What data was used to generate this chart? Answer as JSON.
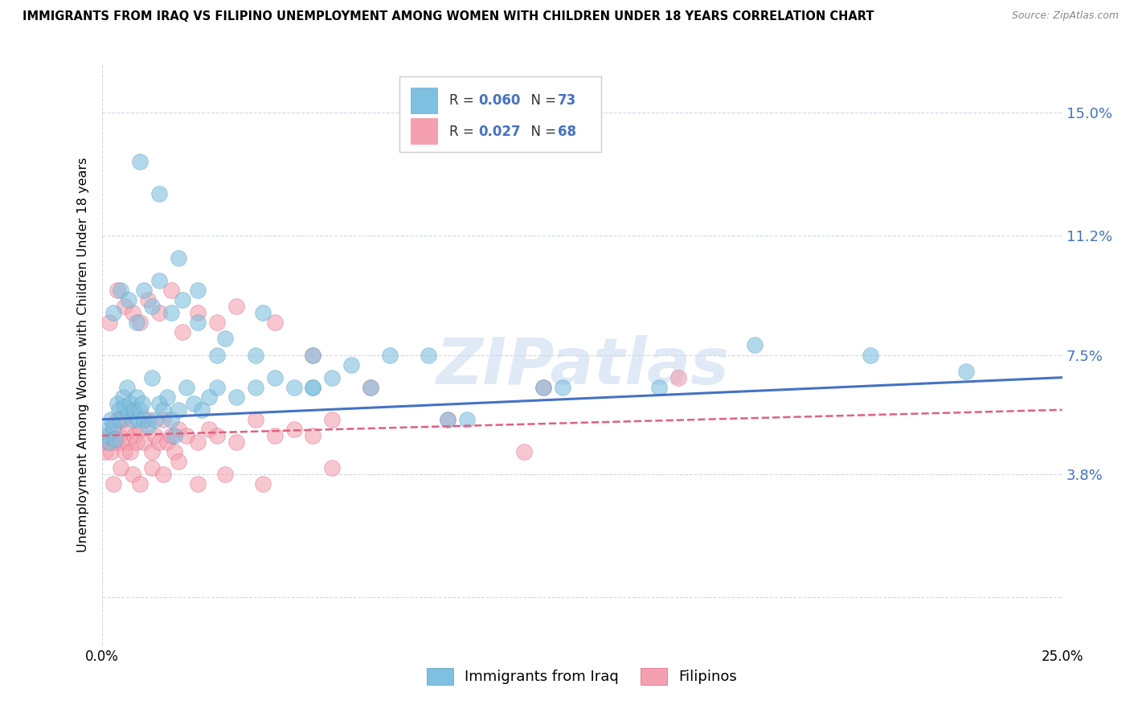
{
  "title": "IMMIGRANTS FROM IRAQ VS FILIPINO UNEMPLOYMENT AMONG WOMEN WITH CHILDREN UNDER 18 YEARS CORRELATION CHART",
  "source": "Source: ZipAtlas.com",
  "ylabel": "Unemployment Among Women with Children Under 18 years",
  "xlim": [
    0.0,
    25.0
  ],
  "ylim": [
    -1.5,
    16.5
  ],
  "yticks": [
    0,
    3.8,
    7.5,
    11.2,
    15.0
  ],
  "ytick_labels": [
    "",
    "3.8%",
    "7.5%",
    "11.2%",
    "15.0%"
  ],
  "watermark": "ZIPatlas",
  "series1": {
    "label": "Immigrants from Iraq",
    "color": "#7fbfdf",
    "edge_color": "#5a9ec0",
    "R": 0.06,
    "N": 73,
    "x": [
      0.1,
      0.15,
      0.2,
      0.25,
      0.3,
      0.35,
      0.4,
      0.45,
      0.5,
      0.55,
      0.6,
      0.65,
      0.7,
      0.75,
      0.8,
      0.85,
      0.9,
      0.95,
      1.0,
      1.05,
      1.1,
      1.2,
      1.3,
      1.4,
      1.5,
      1.6,
      1.7,
      1.8,
      1.9,
      2.0,
      2.2,
      2.4,
      2.6,
      2.8,
      3.0,
      3.5,
      4.0,
      4.5,
      5.0,
      5.5,
      6.0,
      6.5,
      7.5,
      8.5,
      9.5,
      11.5,
      14.5,
      22.5,
      0.3,
      0.5,
      0.7,
      0.9,
      1.1,
      1.3,
      1.5,
      1.8,
      2.1,
      2.5,
      3.2,
      4.2,
      5.5,
      7.0,
      9.0,
      12.0,
      17.0,
      20.0,
      1.0,
      1.5,
      2.0,
      2.5,
      3.0,
      4.0,
      5.5
    ],
    "y": [
      5.0,
      5.2,
      4.8,
      5.5,
      5.3,
      4.9,
      6.0,
      5.8,
      5.5,
      6.2,
      5.9,
      6.5,
      5.7,
      6.0,
      5.5,
      5.8,
      6.2,
      5.5,
      5.8,
      6.0,
      5.5,
      5.3,
      6.8,
      5.5,
      6.0,
      5.8,
      6.2,
      5.5,
      5.0,
      5.8,
      6.5,
      6.0,
      5.8,
      6.2,
      6.5,
      6.2,
      6.5,
      6.8,
      6.5,
      6.5,
      6.8,
      7.2,
      7.5,
      7.5,
      5.5,
      6.5,
      6.5,
      7.0,
      8.8,
      9.5,
      9.2,
      8.5,
      9.5,
      9.0,
      9.8,
      8.8,
      9.2,
      8.5,
      8.0,
      8.8,
      7.5,
      6.5,
      5.5,
      6.5,
      7.8,
      7.5,
      13.5,
      12.5,
      10.5,
      9.5,
      7.5,
      7.5,
      6.5
    ]
  },
  "series2": {
    "label": "Filipinos",
    "color": "#f4a0b0",
    "edge_color": "#e06080",
    "R": 0.027,
    "N": 68,
    "x": [
      0.1,
      0.15,
      0.2,
      0.25,
      0.3,
      0.35,
      0.4,
      0.45,
      0.5,
      0.55,
      0.6,
      0.65,
      0.7,
      0.75,
      0.8,
      0.85,
      0.9,
      1.0,
      1.1,
      1.2,
      1.3,
      1.4,
      1.5,
      1.6,
      1.7,
      1.8,
      1.9,
      2.0,
      2.2,
      2.5,
      2.8,
      3.0,
      3.5,
      4.0,
      4.5,
      5.0,
      5.5,
      6.0,
      0.2,
      0.4,
      0.6,
      0.8,
      1.0,
      1.2,
      1.5,
      1.8,
      2.1,
      2.5,
      3.0,
      3.5,
      4.5,
      5.5,
      7.0,
      9.0,
      11.5,
      15.0,
      0.3,
      0.5,
      0.8,
      1.0,
      1.3,
      1.6,
      2.0,
      2.5,
      3.2,
      4.2,
      6.0,
      11.0
    ],
    "y": [
      4.5,
      4.8,
      5.0,
      4.5,
      5.2,
      4.8,
      5.5,
      5.0,
      4.8,
      5.5,
      4.5,
      4.8,
      5.2,
      4.5,
      5.8,
      5.0,
      4.8,
      5.2,
      4.8,
      5.5,
      4.5,
      5.0,
      4.8,
      5.5,
      4.8,
      5.0,
      4.5,
      5.2,
      5.0,
      4.8,
      5.2,
      5.0,
      4.8,
      5.5,
      5.0,
      5.2,
      5.0,
      5.5,
      8.5,
      9.5,
      9.0,
      8.8,
      8.5,
      9.2,
      8.8,
      9.5,
      8.2,
      8.8,
      8.5,
      9.0,
      8.5,
      7.5,
      6.5,
      5.5,
      6.5,
      6.8,
      3.5,
      4.0,
      3.8,
      3.5,
      4.0,
      3.8,
      4.2,
      3.5,
      3.8,
      3.5,
      4.0,
      4.5
    ]
  },
  "legend_R_color": "#4472c4",
  "trendline1_color": "#4472c4",
  "trendline2_color": "#e06080",
  "grid_color": "#d0d8e8",
  "background_color": "#ffffff"
}
